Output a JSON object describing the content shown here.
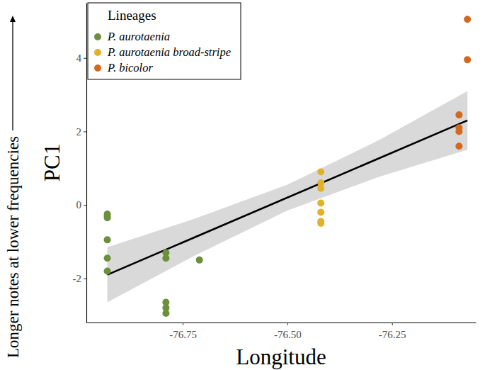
{
  "chart_data": {
    "type": "scatter",
    "x_label": "Longitude",
    "y_label": "PC1",
    "annotation": "Longer notes at lower frequencies",
    "legend_title": "Lineages",
    "legend": "top-left",
    "series": [
      {
        "name": "P. aurotaenia",
        "color": "#6b8f3a",
        "marker": "circle",
        "x": [
          -76.93,
          -76.93,
          -76.93,
          -76.93,
          -76.93,
          -76.93,
          -76.79,
          -76.79,
          -76.79,
          -76.79,
          -76.79,
          -76.71
        ],
        "values": [
          -0.25,
          -0.3,
          -0.35,
          -0.95,
          -1.45,
          -1.8,
          -1.3,
          -1.45,
          -2.65,
          -2.8,
          -2.95,
          -1.5
        ]
      },
      {
        "name": "P. aurotaenia broad-stripe",
        "color": "#e2b12c",
        "marker": "circle",
        "x": [
          -76.42,
          -76.42,
          -76.42,
          -76.42,
          -76.42,
          -76.42,
          -76.42
        ],
        "values": [
          0.9,
          0.6,
          0.45,
          0.05,
          -0.2,
          -0.45,
          -0.5
        ]
      },
      {
        "name": "P. bicolor",
        "color": "#d2691e",
        "marker": "circle",
        "x": [
          -76.09,
          -76.09,
          -76.09,
          -76.09,
          -76.07,
          -76.07
        ],
        "values": [
          2.45,
          2.1,
          2.0,
          1.6,
          5.05,
          3.95
        ]
      }
    ],
    "regression": {
      "x": [
        -76.93,
        -76.07
      ],
      "y": [
        -1.9,
        2.3
      ],
      "color": "#000000"
    },
    "confidence_band": {
      "x": [
        -76.93,
        -76.72,
        -76.5,
        -76.28,
        -76.07
      ],
      "lower": [
        -2.65,
        -1.37,
        -0.15,
        0.77,
        1.5
      ],
      "upper": [
        -1.15,
        -0.37,
        0.55,
        1.77,
        3.1
      ],
      "color": "#cccccc"
    },
    "xlim": [
      -76.98,
      -76.05
    ],
    "ylim": [
      -3.2,
      5.5
    ],
    "xticks": [
      -76.75,
      {
        "value": -76.5,
        "label": "-76.50"
      },
      -76.25
    ],
    "yticks": [
      -2,
      0,
      2,
      4
    ],
    "grid": false
  }
}
